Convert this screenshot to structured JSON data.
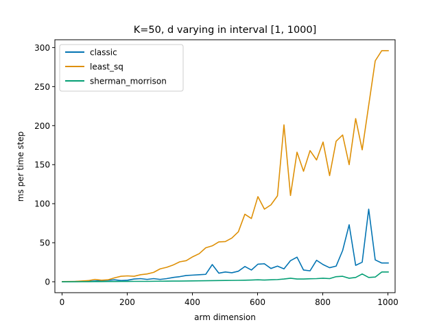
{
  "chart_data": {
    "type": "line",
    "title": "K=50, d varying in interval [1, 1000]",
    "xlabel": "arm dimension",
    "ylabel": "ms per time step",
    "xlim": [
      -22,
      1022
    ],
    "ylim": [
      -14,
      310
    ],
    "xticks": [
      0,
      200,
      400,
      600,
      800,
      1000
    ],
    "yticks": [
      0,
      50,
      100,
      150,
      200,
      250,
      300
    ],
    "grid": false,
    "legend_position": "top-left",
    "x": [
      1,
      21,
      41,
      61,
      81,
      101,
      121,
      141,
      161,
      181,
      201,
      221,
      241,
      261,
      281,
      301,
      321,
      341,
      361,
      381,
      401,
      421,
      441,
      461,
      481,
      501,
      521,
      541,
      561,
      581,
      601,
      621,
      641,
      661,
      681,
      701,
      721,
      741,
      761,
      781,
      801,
      821,
      841,
      861,
      881,
      901,
      921,
      941,
      961,
      981,
      1001
    ],
    "series": [
      {
        "name": "classic",
        "color": "#0173b2",
        "values": [
          0.1,
          0.2,
          0.3,
          0.4,
          0.6,
          1.0,
          1.5,
          1.8,
          2.5,
          1.5,
          2.0,
          3.5,
          4.0,
          3.0,
          4.0,
          3.0,
          4.0,
          5.5,
          6.5,
          8.0,
          8.5,
          9.0,
          9.5,
          22.0,
          11.0,
          12.5,
          11.5,
          13.5,
          19.5,
          15.0,
          22.5,
          23.0,
          17.0,
          20.0,
          16.5,
          27.0,
          31.5,
          15.0,
          14.0,
          27.5,
          22.0,
          18.0,
          20.0,
          40.0,
          73.0,
          21.0,
          25.0,
          93.0,
          28.0,
          24.0,
          24.0
        ]
      },
      {
        "name": "least_sq",
        "color": "#de8f05",
        "values": [
          0.2,
          0.3,
          0.5,
          1.0,
          1.5,
          3.0,
          2.0,
          2.5,
          5.0,
          7.0,
          7.5,
          7.0,
          9.0,
          10.0,
          12.0,
          16.5,
          18.5,
          21.5,
          25.5,
          27.0,
          32.0,
          36.0,
          43.5,
          46.0,
          51.0,
          51.5,
          56.0,
          64.0,
          86.5,
          81.0,
          109.0,
          93.0,
          98.5,
          110.0,
          201.0,
          110.5,
          166.0,
          141.5,
          168.0,
          156.0,
          179.0,
          136.0,
          180.0,
          188.0,
          150.0,
          209.0,
          169.0,
          226.0,
          283.0,
          296.0,
          296.0
        ]
      },
      {
        "name": "sherman_morrison",
        "color": "#029e73",
        "values": [
          0.0,
          0.0,
          0.0,
          0.1,
          0.1,
          0.2,
          0.2,
          0.3,
          0.3,
          0.4,
          0.4,
          0.5,
          0.5,
          0.5,
          0.6,
          0.7,
          0.8,
          0.9,
          0.9,
          1.0,
          1.1,
          1.2,
          1.3,
          1.4,
          1.5,
          1.6,
          1.7,
          1.8,
          2.0,
          2.2,
          2.5,
          2.2,
          2.5,
          2.8,
          3.5,
          4.5,
          3.5,
          3.5,
          3.8,
          4.0,
          4.5,
          4.0,
          6.5,
          7.0,
          4.5,
          5.5,
          10.0,
          5.5,
          6.0,
          12.5,
          12.5
        ]
      }
    ]
  }
}
